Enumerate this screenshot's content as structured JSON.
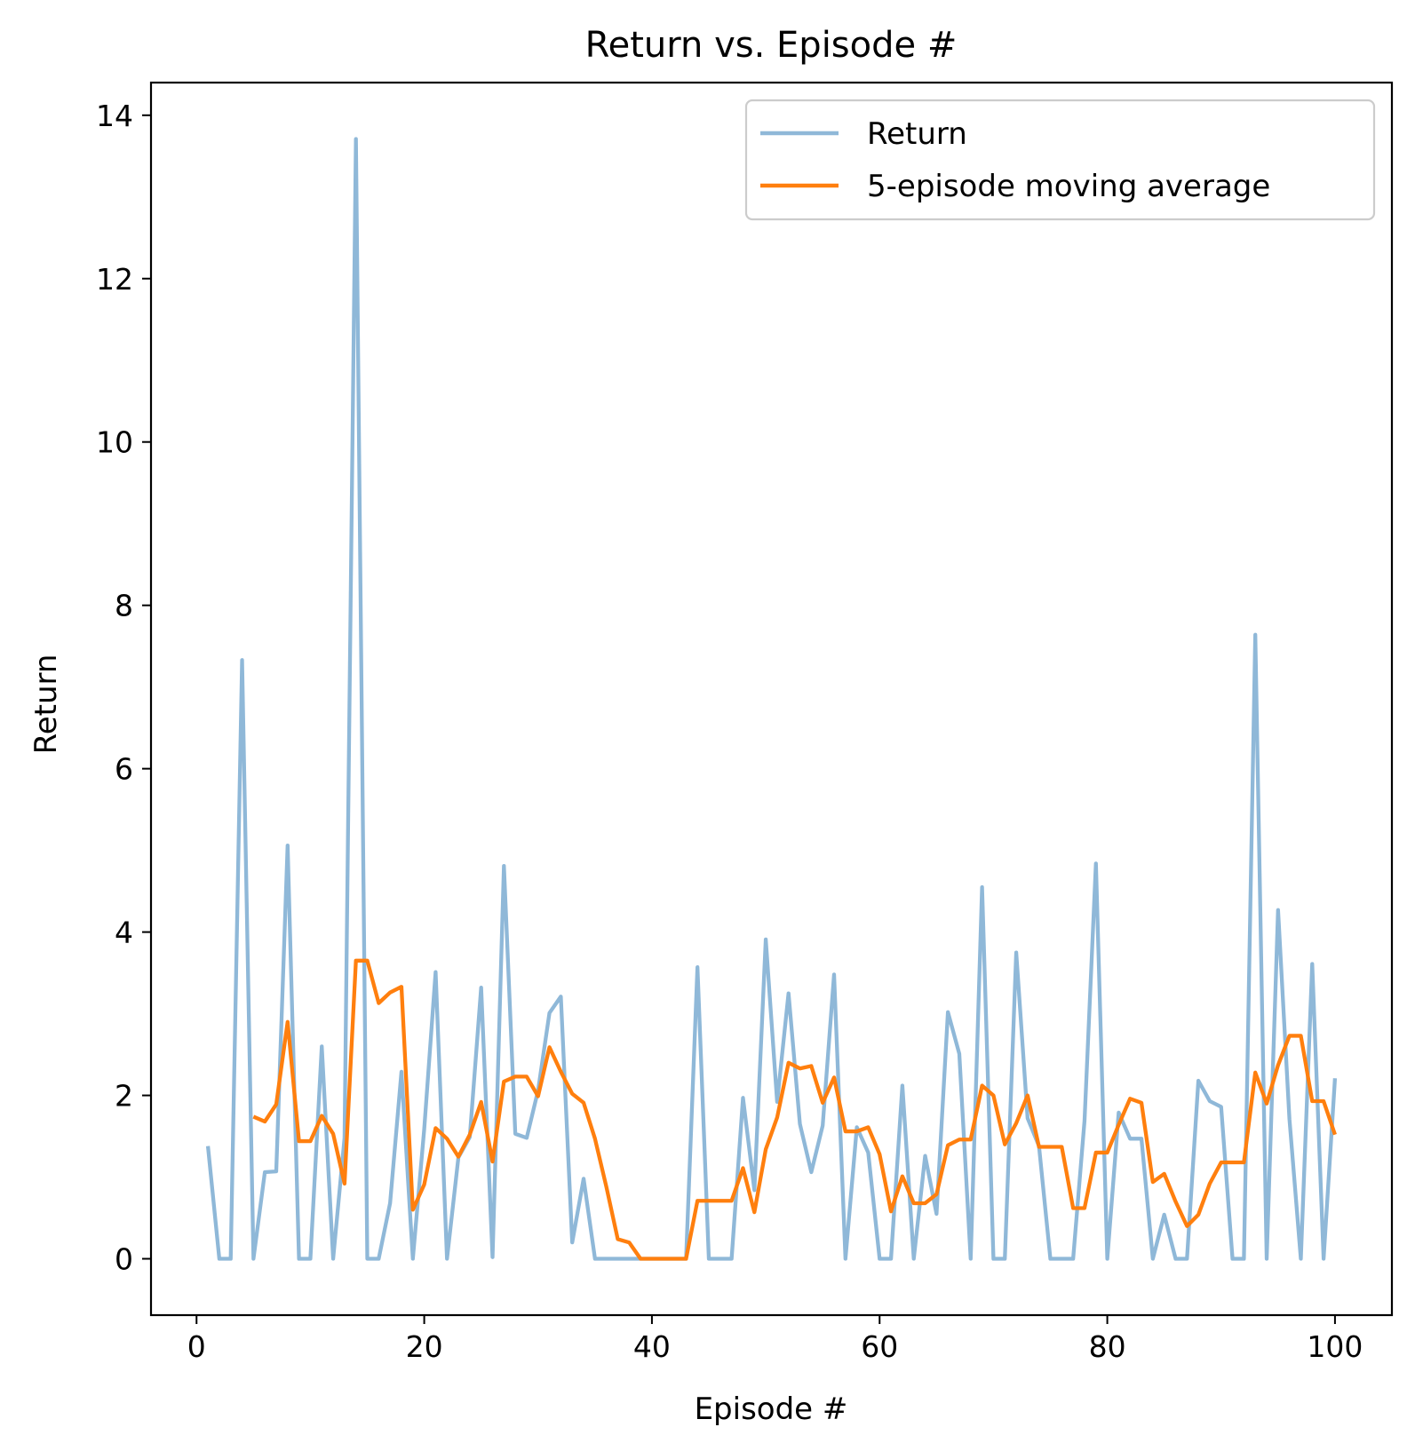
{
  "chart_data": {
    "type": "line",
    "title": "Return vs. Episode #",
    "xlabel": "Episode #",
    "ylabel": "Return",
    "xlim": [
      -4,
      105
    ],
    "ylim": [
      -0.69,
      14.4
    ],
    "xticks": [
      0,
      20,
      40,
      60,
      80,
      100
    ],
    "yticks": [
      0,
      2,
      4,
      6,
      8,
      10,
      12,
      14
    ],
    "grid": false,
    "legend": "top-right",
    "series": [
      {
        "name": "Return",
        "color": "#8fb8d8",
        "x": [
          1,
          2,
          3,
          4,
          5,
          6,
          7,
          8,
          9,
          10,
          11,
          12,
          13,
          14,
          15,
          16,
          17,
          18,
          19,
          20,
          21,
          22,
          23,
          24,
          25,
          26,
          27,
          28,
          29,
          30,
          31,
          32,
          33,
          34,
          35,
          36,
          37,
          38,
          39,
          40,
          41,
          42,
          43,
          44,
          45,
          46,
          47,
          48,
          49,
          50,
          51,
          52,
          53,
          54,
          55,
          56,
          57,
          58,
          59,
          60,
          61,
          62,
          63,
          64,
          65,
          66,
          67,
          68,
          69,
          70,
          71,
          72,
          73,
          74,
          75,
          76,
          77,
          78,
          79,
          80,
          81,
          82,
          83,
          84,
          85,
          86,
          87,
          88,
          89,
          90,
          91,
          92,
          93,
          94,
          95,
          96,
          97,
          98,
          99,
          100
        ],
        "values": [
          1.38,
          0,
          0,
          7.33,
          0,
          1.06,
          1.07,
          5.06,
          0,
          0,
          2.6,
          0,
          1.48,
          13.71,
          0,
          0,
          0.68,
          2.29,
          0,
          1.59,
          3.51,
          0,
          1.24,
          1.49,
          3.32,
          0.02,
          4.81,
          1.53,
          1.48,
          2.06,
          3.01,
          3.21,
          0.2,
          0.98,
          0,
          0,
          0,
          0,
          0,
          0,
          0,
          0,
          0,
          3.57,
          0,
          0,
          0,
          1.97,
          0.84,
          3.91,
          1.92,
          3.25,
          1.65,
          1.06,
          1.63,
          3.48,
          0,
          1.61,
          1.3,
          0,
          0,
          2.12,
          0,
          1.26,
          0.55,
          3.02,
          2.51,
          0,
          4.55,
          0,
          0,
          3.75,
          1.72,
          1.38,
          0,
          0,
          0,
          1.69,
          4.84,
          0,
          1.79,
          1.47,
          1.47,
          0,
          0.54,
          0,
          0,
          2.18,
          1.93,
          1.86,
          0,
          0,
          7.64,
          0,
          4.27,
          1.71,
          0,
          3.61,
          0,
          2.21
        ]
      },
      {
        "name": "5-episode moving average",
        "color": "#ff7f0e",
        "x": [
          5,
          6,
          7,
          8,
          9,
          10,
          11,
          12,
          13,
          14,
          15,
          16,
          17,
          18,
          19,
          20,
          21,
          22,
          23,
          24,
          25,
          26,
          27,
          28,
          29,
          30,
          31,
          32,
          33,
          34,
          35,
          36,
          37,
          38,
          39,
          40,
          41,
          42,
          43,
          44,
          45,
          46,
          47,
          48,
          49,
          50,
          51,
          52,
          53,
          54,
          55,
          56,
          57,
          58,
          59,
          60,
          61,
          62,
          63,
          64,
          65,
          66,
          67,
          68,
          69,
          70,
          71,
          72,
          73,
          74,
          75,
          76,
          77,
          78,
          79,
          80,
          81,
          82,
          83,
          84,
          85,
          86,
          87,
          88,
          89,
          90,
          91,
          92,
          93,
          94,
          95,
          96,
          97,
          98,
          99,
          100
        ],
        "values": [
          1.74,
          1.68,
          1.89,
          2.9,
          1.44,
          1.44,
          1.75,
          1.53,
          0.92,
          3.65,
          3.65,
          3.13,
          3.26,
          3.33,
          0.6,
          0.91,
          1.6,
          1.47,
          1.25,
          1.52,
          1.92,
          1.19,
          2.17,
          2.23,
          2.23,
          1.99,
          2.59,
          2.29,
          2.02,
          1.91,
          1.47,
          0.88,
          0.24,
          0.2,
          0,
          0,
          0,
          0,
          0,
          0.71,
          0.71,
          0.71,
          0.71,
          1.11,
          0.57,
          1.34,
          1.73,
          2.4,
          2.33,
          2.36,
          1.91,
          2.22,
          1.56,
          1.56,
          1.61,
          1.28,
          0.58,
          1.01,
          0.68,
          0.68,
          0.79,
          1.39,
          1.46,
          1.46,
          2.12,
          2.0,
          1.4,
          1.66,
          2.0,
          1.37,
          1.37,
          1.37,
          0.62,
          0.62,
          1.3,
          1.3,
          1.64,
          1.96,
          1.91,
          0.94,
          1.04,
          0.7,
          0.4,
          0.54,
          0.92,
          1.18,
          1.18,
          1.18,
          2.28,
          1.9,
          2.37,
          2.73,
          2.73,
          1.93,
          1.93,
          1.52
        ]
      }
    ]
  }
}
